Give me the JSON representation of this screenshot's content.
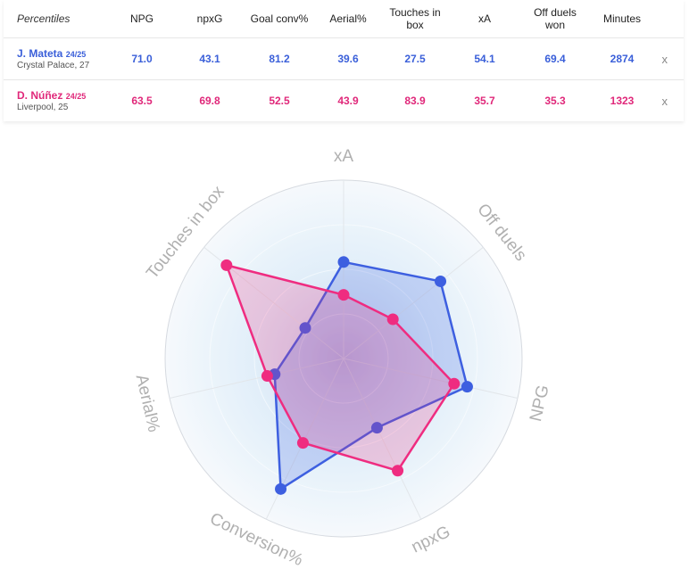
{
  "table": {
    "corner_label": "Percentiles",
    "columns": [
      "NPG",
      "npxG",
      "Goal conv%",
      "Aerial%",
      "Touches in box",
      "xA",
      "Off duels won",
      "Minutes"
    ],
    "remove_symbol": "x",
    "players": [
      {
        "name": "J. Mateta",
        "season": "24/25",
        "club": "Crystal Palace, 27",
        "values": [
          "71.0",
          "43.1",
          "81.2",
          "39.6",
          "27.5",
          "54.1",
          "69.4",
          "2874"
        ]
      },
      {
        "name": "D. Núñez",
        "season": "24/25",
        "club": "Liverpool, 25",
        "values": [
          "63.5",
          "69.8",
          "52.5",
          "43.9",
          "83.9",
          "35.7",
          "35.3",
          "1323"
        ]
      }
    ]
  },
  "chart_data": {
    "type": "radar",
    "axes": [
      "xA",
      "Off duels",
      "NPG",
      "npxG",
      "Conversion%",
      "Aerial%",
      "Touches in box"
    ],
    "range": [
      0,
      100
    ],
    "series": [
      {
        "name": "J. Mateta",
        "color": "#3d5fe0",
        "values": [
          54.1,
          69.4,
          71.0,
          43.1,
          81.2,
          39.6,
          27.5
        ]
      },
      {
        "name": "D. Núñez",
        "color": "#ef2c80",
        "values": [
          35.7,
          35.3,
          63.5,
          69.8,
          52.5,
          43.9,
          83.9
        ]
      }
    ]
  }
}
